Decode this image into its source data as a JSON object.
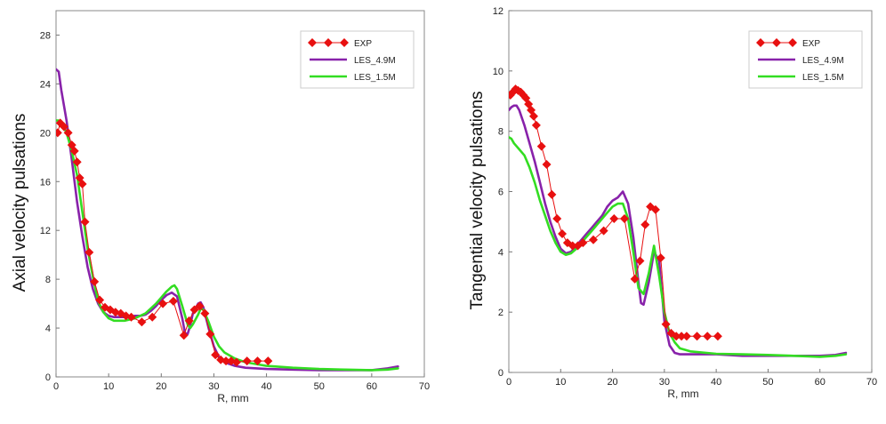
{
  "chart_data": [
    {
      "type": "line",
      "xlabel": "R, mm",
      "ylabel": "Axial velocity pulsations",
      "xlim": [
        0,
        70
      ],
      "ylim": [
        0,
        30
      ],
      "xticks": [
        0,
        10,
        20,
        30,
        40,
        50,
        60,
        70
      ],
      "yticks": [
        0,
        4,
        8,
        12,
        16,
        20,
        24,
        28
      ],
      "grid": false,
      "legend_position": "top-right",
      "series": [
        {
          "name": "EXP",
          "style": "line-markers",
          "marker": "diamond",
          "color": "#e81010",
          "x": [
            0.3,
            0.8,
            1.5,
            2.3,
            3.0,
            3.5,
            4.0,
            4.5,
            5.0,
            5.5,
            6.3,
            7.3,
            8.3,
            9.3,
            10.3,
            11.3,
            12.3,
            13.3,
            14.3,
            16.3,
            18.3,
            20.3,
            22.3,
            24.3,
            25.3,
            26.3,
            27.3,
            28.3,
            29.3,
            30.3,
            31.3,
            32.3,
            33.3,
            34.3,
            36.3,
            38.3,
            40.3
          ],
          "y": [
            20.0,
            20.8,
            20.5,
            20.0,
            19.0,
            18.5,
            17.6,
            16.3,
            15.8,
            12.7,
            10.2,
            7.8,
            6.3,
            5.7,
            5.5,
            5.3,
            5.2,
            5.0,
            4.9,
            4.5,
            4.9,
            6.0,
            6.2,
            3.4,
            4.6,
            5.5,
            5.8,
            5.2,
            3.5,
            1.8,
            1.4,
            1.3,
            1.3,
            1.2,
            1.3,
            1.3,
            1.3
          ]
        },
        {
          "name": "LES_4.9M",
          "style": "line",
          "color": "#8822aa",
          "x": [
            0,
            0.5,
            1,
            2,
            3,
            4,
            5,
            6,
            7,
            8,
            9,
            10,
            11,
            12,
            13,
            14,
            15,
            16,
            17,
            18,
            19,
            20,
            21,
            22,
            23,
            24,
            24.5,
            25,
            25.5,
            26,
            27,
            27.5,
            28,
            29,
            30,
            31,
            32,
            34,
            36,
            40,
            45,
            50,
            55,
            60,
            63,
            65
          ],
          "y": [
            25.2,
            25.0,
            23.5,
            21.0,
            17.8,
            14.3,
            11.5,
            9.0,
            7.2,
            6.0,
            5.3,
            5.0,
            4.9,
            4.9,
            4.9,
            4.9,
            5.0,
            5.0,
            5.1,
            5.4,
            5.8,
            6.3,
            6.7,
            6.9,
            6.6,
            4.8,
            3.6,
            3.5,
            4.2,
            5.2,
            6.0,
            6.1,
            5.7,
            4.0,
            2.5,
            1.6,
            1.2,
            0.9,
            0.75,
            0.65,
            0.6,
            0.55,
            0.55,
            0.55,
            0.7,
            0.85
          ]
        },
        {
          "name": "LES_1.5M",
          "style": "line",
          "color": "#33dd22",
          "x": [
            0,
            0.5,
            1,
            2,
            3,
            4,
            5,
            6,
            7,
            8,
            9,
            10,
            11,
            12,
            13,
            14,
            15,
            16,
            17,
            18,
            19,
            20,
            21,
            22,
            22.5,
            23,
            24,
            25,
            25.5,
            26,
            27,
            27.5,
            28,
            29,
            30,
            31,
            32,
            34,
            36,
            40,
            45,
            50,
            55,
            60,
            63,
            65
          ],
          "y": [
            21.0,
            21.0,
            20.8,
            20.0,
            18.5,
            16.5,
            13.5,
            10.5,
            8.2,
            6.2,
            5.3,
            4.8,
            4.6,
            4.6,
            4.6,
            4.7,
            4.8,
            5.0,
            5.2,
            5.6,
            6.0,
            6.5,
            7.0,
            7.4,
            7.5,
            7.2,
            5.8,
            4.3,
            4.0,
            4.3,
            5.1,
            5.6,
            5.5,
            4.5,
            3.3,
            2.5,
            2.0,
            1.5,
            1.2,
            0.9,
            0.75,
            0.65,
            0.6,
            0.55,
            0.6,
            0.7
          ]
        }
      ]
    },
    {
      "type": "line",
      "xlabel": "R, mm",
      "ylabel": "Tangential velocity pulsations",
      "xlim": [
        0,
        70
      ],
      "ylim": [
        0,
        12
      ],
      "xticks": [
        0,
        10,
        20,
        30,
        40,
        50,
        60,
        70
      ],
      "yticks": [
        0,
        2,
        4,
        6,
        8,
        10,
        12
      ],
      "grid": false,
      "legend_position": "top-right",
      "series": [
        {
          "name": "EXP",
          "style": "line-markers",
          "marker": "diamond",
          "color": "#e81010",
          "x": [
            0.3,
            0.8,
            1.3,
            1.8,
            2.3,
            2.8,
            3.3,
            3.8,
            4.3,
            4.8,
            5.3,
            6.3,
            7.3,
            8.3,
            9.3,
            10.3,
            11.3,
            12.3,
            13.3,
            14.3,
            16.3,
            18.3,
            20.3,
            22.3,
            24.3,
            25.3,
            26.3,
            27.3,
            28.3,
            29.3,
            30.3,
            31.3,
            32.3,
            33.3,
            34.3,
            36.3,
            38.3,
            40.3
          ],
          "y": [
            9.2,
            9.3,
            9.4,
            9.35,
            9.3,
            9.2,
            9.1,
            8.9,
            8.7,
            8.5,
            8.2,
            7.5,
            6.9,
            5.9,
            5.1,
            4.6,
            4.3,
            4.2,
            4.2,
            4.3,
            4.4,
            4.7,
            5.1,
            5.1,
            3.1,
            3.7,
            4.9,
            5.5,
            5.4,
            3.8,
            1.6,
            1.3,
            1.2,
            1.2,
            1.2,
            1.2,
            1.2,
            1.2
          ]
        },
        {
          "name": "LES_4.9M",
          "style": "line",
          "color": "#8822aa",
          "x": [
            0,
            0.5,
            1,
            1.5,
            2,
            3,
            4,
            5,
            6,
            7,
            8,
            9,
            10,
            11,
            12,
            13,
            14,
            15,
            16,
            17,
            18,
            19,
            20,
            21,
            22,
            23,
            24,
            25,
            25.5,
            26,
            27,
            28,
            29,
            30,
            31,
            32,
            33,
            35,
            40,
            45,
            50,
            55,
            60,
            63,
            65
          ],
          "y": [
            8.7,
            8.8,
            8.85,
            8.85,
            8.7,
            8.2,
            7.6,
            7.0,
            6.3,
            5.6,
            5.0,
            4.5,
            4.1,
            3.95,
            4.0,
            4.2,
            4.4,
            4.6,
            4.8,
            5.0,
            5.2,
            5.5,
            5.7,
            5.8,
            6.0,
            5.6,
            4.5,
            3.0,
            2.3,
            2.25,
            3.0,
            4.0,
            3.7,
            1.7,
            0.9,
            0.65,
            0.6,
            0.6,
            0.6,
            0.55,
            0.55,
            0.55,
            0.55,
            0.58,
            0.65
          ]
        },
        {
          "name": "LES_1.5M",
          "style": "line",
          "color": "#33dd22",
          "x": [
            0,
            0.5,
            1,
            2,
            3,
            4,
            5,
            6,
            7,
            8,
            9,
            10,
            11,
            12,
            13,
            14,
            15,
            16,
            17,
            18,
            19,
            20,
            21,
            22,
            23,
            24,
            25,
            26,
            27,
            28,
            29,
            30,
            31,
            32,
            33,
            35,
            40,
            45,
            50,
            55,
            60,
            63,
            65
          ],
          "y": [
            7.8,
            7.75,
            7.6,
            7.4,
            7.2,
            6.8,
            6.3,
            5.7,
            5.2,
            4.7,
            4.3,
            4.0,
            3.9,
            3.95,
            4.1,
            4.3,
            4.5,
            4.7,
            4.9,
            5.1,
            5.3,
            5.5,
            5.6,
            5.6,
            5.1,
            4.0,
            2.8,
            2.6,
            3.3,
            4.2,
            3.2,
            2.0,
            1.3,
            1.0,
            0.8,
            0.7,
            0.62,
            0.6,
            0.58,
            0.55,
            0.52,
            0.55,
            0.6
          ]
        }
      ]
    }
  ]
}
